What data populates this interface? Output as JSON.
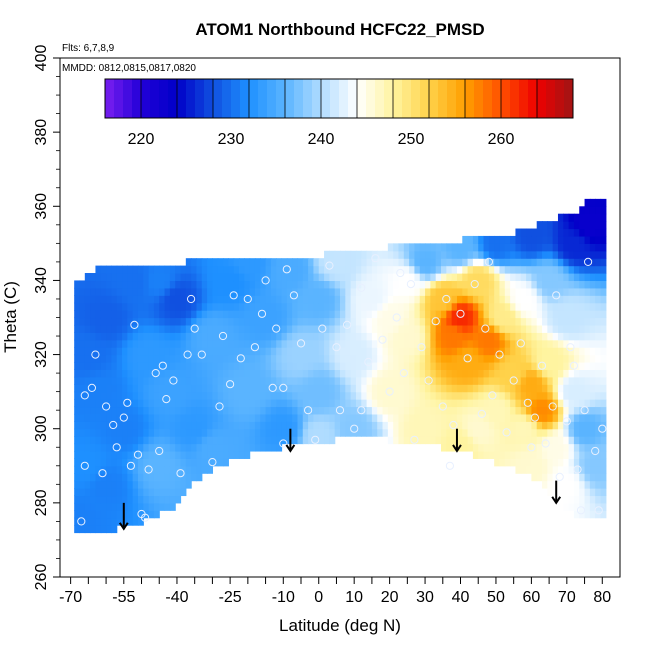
{
  "chart_data": {
    "type": "heatmap",
    "title": "ATOM1 Northbound HCFC22_PMSD",
    "xlabel": "Latitude (deg N)",
    "ylabel": "Theta (C)",
    "xlim": [
      -70,
      80
    ],
    "ylim": [
      260,
      400
    ],
    "x_ticks": [
      -70,
      -55,
      -40,
      -25,
      -10,
      0,
      10,
      20,
      30,
      40,
      50,
      60,
      70,
      80
    ],
    "x_minor_ticks": [
      -65,
      -60,
      -50,
      -45,
      -35,
      -30,
      -20,
      -15,
      -5,
      5,
      15,
      25,
      35,
      45,
      55,
      65,
      75
    ],
    "y_ticks": [
      260,
      280,
      300,
      320,
      340,
      360,
      380,
      400
    ],
    "annotations": {
      "flights": "Flts: 6,7,8,9",
      "dates": "MMDD: 0812,0815,0817,0820"
    },
    "colorbar": {
      "range": [
        216,
        268
      ],
      "ticks": [
        220,
        230,
        240,
        250,
        260
      ],
      "colors": [
        "#7a1ff0",
        "#2200d8",
        "#0000c8",
        "#1050e0",
        "#1e90ff",
        "#5ab4ff",
        "#b0dcff",
        "#ffffff",
        "#fff4a0",
        "#ffd24a",
        "#ff9f00",
        "#ff5000",
        "#ee0000",
        "#a01515"
      ]
    },
    "grid": false,
    "legend": "colorbar top",
    "coverage": {
      "top_boundary": [
        [
          -68,
          339
        ],
        [
          -63,
          343
        ],
        [
          -50,
          344
        ],
        [
          -38,
          345
        ],
        [
          -20,
          346
        ],
        [
          -8,
          346
        ],
        [
          2,
          347
        ],
        [
          8,
          347
        ],
        [
          12,
          347
        ],
        [
          20,
          349
        ],
        [
          30,
          350
        ],
        [
          40,
          351
        ],
        [
          52,
          352
        ],
        [
          62,
          355
        ],
        [
          68,
          357
        ],
        [
          73,
          359
        ],
        [
          76,
          362
        ]
      ],
      "bottom_boundary": [
        [
          -68,
          273
        ],
        [
          -60,
          272
        ],
        [
          -50,
          275
        ],
        [
          -42,
          278
        ],
        [
          -38,
          283
        ],
        [
          -30,
          289
        ],
        [
          -20,
          293
        ],
        [
          -10,
          295
        ],
        [
          0,
          296
        ],
        [
          10,
          298
        ],
        [
          20,
          297
        ],
        [
          30,
          296
        ],
        [
          40,
          294
        ],
        [
          50,
          291
        ],
        [
          60,
          287
        ],
        [
          66,
          282
        ],
        [
          72,
          277
        ],
        [
          78,
          275
        ],
        [
          80,
          276
        ]
      ]
    },
    "field_points": [
      [
        -68,
        275,
        231
      ],
      [
        -65,
        290,
        232
      ],
      [
        -62,
        310,
        231
      ],
      [
        -60,
        330,
        229
      ],
      [
        -55,
        300,
        231
      ],
      [
        -52,
        340,
        230
      ],
      [
        -48,
        320,
        233
      ],
      [
        -45,
        290,
        236
      ],
      [
        -42,
        310,
        234
      ],
      [
        -40,
        335,
        228
      ],
      [
        -35,
        300,
        233
      ],
      [
        -30,
        325,
        235
      ],
      [
        -25,
        340,
        232
      ],
      [
        -20,
        310,
        236
      ],
      [
        -15,
        330,
        234
      ],
      [
        -10,
        300,
        233
      ],
      [
        -8,
        343,
        235
      ],
      [
        -5,
        320,
        239
      ],
      [
        0,
        310,
        237
      ],
      [
        0,
        335,
        236
      ],
      [
        5,
        345,
        241
      ],
      [
        10,
        320,
        242
      ],
      [
        10,
        300,
        238
      ],
      [
        15,
        335,
        243
      ],
      [
        20,
        310,
        246
      ],
      [
        25,
        340,
        244
      ],
      [
        25,
        325,
        246
      ],
      [
        30,
        300,
        247
      ],
      [
        30,
        345,
        236
      ],
      [
        35,
        335,
        253
      ],
      [
        38,
        325,
        258
      ],
      [
        40,
        330,
        262
      ],
      [
        42,
        318,
        255
      ],
      [
        45,
        340,
        251
      ],
      [
        48,
        324,
        258
      ],
      [
        50,
        305,
        247
      ],
      [
        52,
        330,
        249
      ],
      [
        55,
        315,
        252
      ],
      [
        58,
        300,
        247
      ],
      [
        60,
        312,
        255
      ],
      [
        63,
        305,
        257
      ],
      [
        65,
        318,
        248
      ],
      [
        67,
        295,
        245
      ],
      [
        70,
        285,
        244
      ],
      [
        72,
        310,
        242
      ],
      [
        75,
        300,
        236
      ],
      [
        78,
        290,
        238
      ],
      [
        72,
        350,
        226
      ],
      [
        60,
        352,
        228
      ],
      [
        50,
        350,
        230
      ],
      [
        40,
        349,
        236
      ],
      [
        76,
        355,
        223
      ],
      [
        -60,
        285,
        231
      ],
      [
        -30,
        295,
        235
      ],
      [
        0,
        298,
        240
      ],
      [
        40,
        296,
        248
      ],
      [
        60,
        290,
        246
      ],
      [
        20,
        330,
        245
      ],
      [
        -45,
        340,
        231
      ],
      [
        70,
        330,
        241
      ],
      [
        65,
        340,
        238
      ],
      [
        58,
        335,
        244
      ],
      [
        45,
        300,
        246
      ],
      [
        -20,
        345,
        233
      ],
      [
        -65,
        320,
        230
      ]
    ],
    "sample_points": [
      [
        -67,
        275
      ],
      [
        -66,
        290
      ],
      [
        -66,
        309
      ],
      [
        -64,
        311
      ],
      [
        -63,
        320
      ],
      [
        -60,
        306
      ],
      [
        -58,
        301
      ],
      [
        -57,
        295
      ],
      [
        -55,
        303
      ],
      [
        -54,
        307
      ],
      [
        -53,
        290
      ],
      [
        -51,
        293
      ],
      [
        -50,
        277
      ],
      [
        -49,
        276
      ],
      [
        -48,
        289
      ],
      [
        -46,
        315
      ],
      [
        -45,
        294
      ],
      [
        -44,
        317
      ],
      [
        -43,
        308
      ],
      [
        -41,
        313
      ],
      [
        -39,
        288
      ],
      [
        -37,
        320
      ],
      [
        -35,
        327
      ],
      [
        -33,
        320
      ],
      [
        -30,
        291
      ],
      [
        -28,
        306
      ],
      [
        -27,
        325
      ],
      [
        -25,
        312
      ],
      [
        -24,
        336
      ],
      [
        -22,
        319
      ],
      [
        -20,
        335
      ],
      [
        -18,
        322
      ],
      [
        -16,
        331
      ],
      [
        -15,
        340
      ],
      [
        -13,
        311
      ],
      [
        -12,
        327
      ],
      [
        -10,
        296
      ],
      [
        -9,
        343
      ],
      [
        -7,
        336
      ],
      [
        -5,
        323
      ],
      [
        -3,
        305
      ],
      [
        -1,
        297
      ],
      [
        1,
        327
      ],
      [
        3,
        344
      ],
      [
        5,
        322
      ],
      [
        6,
        305
      ],
      [
        8,
        328
      ],
      [
        10,
        300
      ],
      [
        12,
        338
      ],
      [
        14,
        318
      ],
      [
        16,
        346
      ],
      [
        18,
        324
      ],
      [
        20,
        310
      ],
      [
        22,
        330
      ],
      [
        24,
        315
      ],
      [
        26,
        339
      ],
      [
        27,
        297
      ],
      [
        29,
        322
      ],
      [
        31,
        313
      ],
      [
        33,
        329
      ],
      [
        35,
        306
      ],
      [
        36,
        335
      ],
      [
        38,
        301
      ],
      [
        40,
        331
      ],
      [
        42,
        319
      ],
      [
        44,
        339
      ],
      [
        46,
        304
      ],
      [
        47,
        327
      ],
      [
        49,
        309
      ],
      [
        51,
        320
      ],
      [
        53,
        299
      ],
      [
        55,
        313
      ],
      [
        57,
        323
      ],
      [
        59,
        307
      ],
      [
        61,
        303
      ],
      [
        63,
        317
      ],
      [
        64,
        296
      ],
      [
        66,
        306
      ],
      [
        67,
        336
      ],
      [
        68,
        287
      ],
      [
        70,
        302
      ],
      [
        71,
        322
      ],
      [
        72,
        317
      ],
      [
        73,
        289
      ],
      [
        75,
        305
      ],
      [
        76,
        345
      ],
      [
        78,
        294
      ],
      [
        79,
        278
      ],
      [
        80,
        300
      ],
      [
        -61,
        288
      ],
      [
        -36,
        335
      ],
      [
        -10,
        311
      ],
      [
        12,
        305
      ],
      [
        37,
        290
      ],
      [
        60,
        295
      ],
      [
        74,
        278
      ],
      [
        -52,
        328
      ],
      [
        23,
        342
      ],
      [
        48,
        345
      ]
    ],
    "arrows": [
      [
        -55,
        280,
        273
      ],
      [
        -8,
        300,
        294
      ],
      [
        39,
        300,
        294
      ],
      [
        67,
        286,
        280
      ]
    ]
  }
}
